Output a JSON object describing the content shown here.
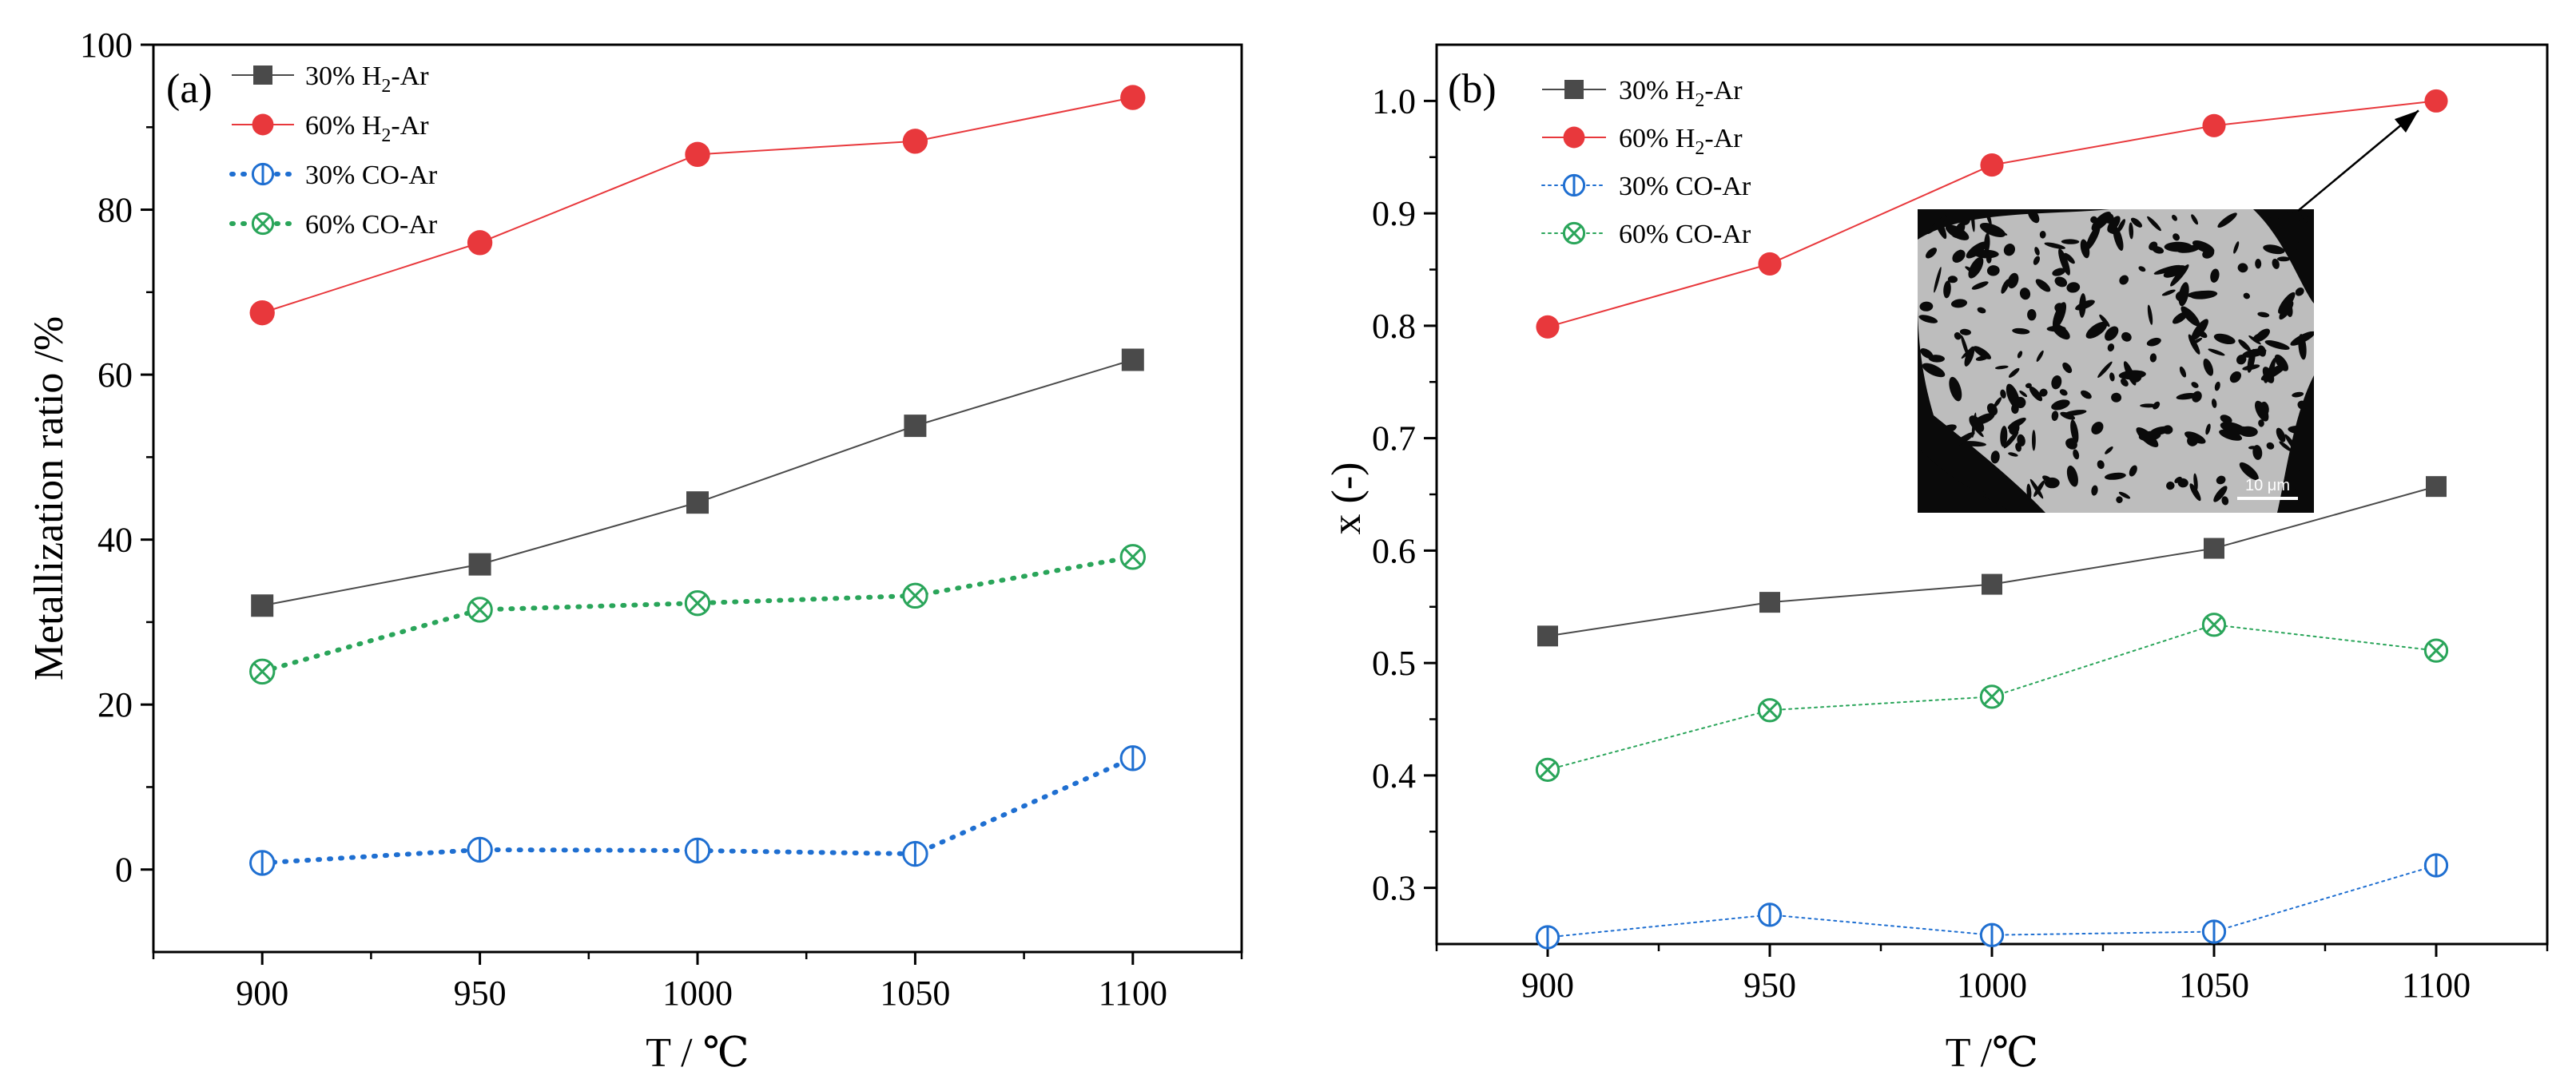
{
  "chart_data": [
    {
      "panel": "(a)",
      "type": "line",
      "xlabel": "T / ℃",
      "ylabel": "Metallization ratio /%",
      "xlim": [
        875,
        1125
      ],
      "ylim": [
        -10,
        100
      ],
      "xticks": [
        900,
        950,
        1000,
        1050,
        1100
      ],
      "yticks": [
        0,
        20,
        40,
        60,
        80,
        100
      ],
      "grid": false,
      "legend_position": "top-left",
      "x": [
        900,
        950,
        1000,
        1050,
        1100
      ],
      "series": [
        {
          "name_pre": "30% H",
          "name_sub": "2",
          "name_post": "-Ar",
          "values": [
            32.0,
            37.0,
            44.5,
            53.8,
            61.8
          ],
          "color": "#4a4a4a",
          "marker": "square",
          "line": "solid"
        },
        {
          "name_pre": "60% H",
          "name_sub": "2",
          "name_post": "-Ar",
          "values": [
            67.5,
            76.0,
            86.7,
            88.3,
            93.6
          ],
          "color": "#e8383c",
          "marker": "circle-filled",
          "line": "solid"
        },
        {
          "name_pre": "30% CO-Ar",
          "name_sub": "",
          "name_post": "",
          "values": [
            0.8,
            2.4,
            2.3,
            1.9,
            13.5
          ],
          "color": "#1f6fd1",
          "marker": "circle-bar",
          "line": "dotted"
        },
        {
          "name_pre": "60% CO-Ar",
          "name_sub": "",
          "name_post": "",
          "values": [
            24.0,
            31.5,
            32.3,
            33.2,
            37.9
          ],
          "color": "#2aa55a",
          "marker": "circle-x",
          "line": "dotted"
        }
      ]
    },
    {
      "panel": "(b)",
      "type": "line",
      "xlabel": "T /℃",
      "ylabel": "x (-)",
      "xlim": [
        875,
        1125
      ],
      "ylim": [
        0.25,
        1.05
      ],
      "xticks": [
        900,
        950,
        1000,
        1050,
        1100
      ],
      "yticks": [
        "0.3",
        "0.4",
        "0.5",
        "0.6",
        "0.7",
        "0.8",
        "0.9",
        "1.0"
      ],
      "grid": false,
      "legend_position": "top-left",
      "inset": {
        "scale_bar_label": "10 μm",
        "arrow_target": [
          1100,
          1.0
        ]
      },
      "x": [
        900,
        950,
        1000,
        1050,
        1100
      ],
      "series": [
        {
          "name_pre": "30% H",
          "name_sub": "2",
          "name_post": "-Ar",
          "values": [
            0.524,
            0.554,
            0.57,
            0.602,
            0.657
          ],
          "color": "#4a4a4a",
          "marker": "square",
          "line": "solid"
        },
        {
          "name_pre": "60% H",
          "name_sub": "2",
          "name_post": "-Ar",
          "values": [
            0.799,
            0.855,
            0.943,
            0.978,
            1.0
          ],
          "color": "#e8383c",
          "marker": "circle-filled",
          "line": "solid"
        },
        {
          "name_pre": "30% CO-Ar",
          "name_sub": "",
          "name_post": "",
          "values": [
            0.256,
            0.276,
            0.258,
            0.261,
            0.32
          ],
          "color": "#1f6fd1",
          "marker": "circle-bar",
          "line": "dotted"
        },
        {
          "name_pre": "60% CO-Ar",
          "name_sub": "",
          "name_post": "",
          "values": [
            0.405,
            0.458,
            0.47,
            0.534,
            0.511
          ],
          "color": "#2aa55a",
          "marker": "circle-x",
          "line": "dotted"
        }
      ]
    }
  ]
}
